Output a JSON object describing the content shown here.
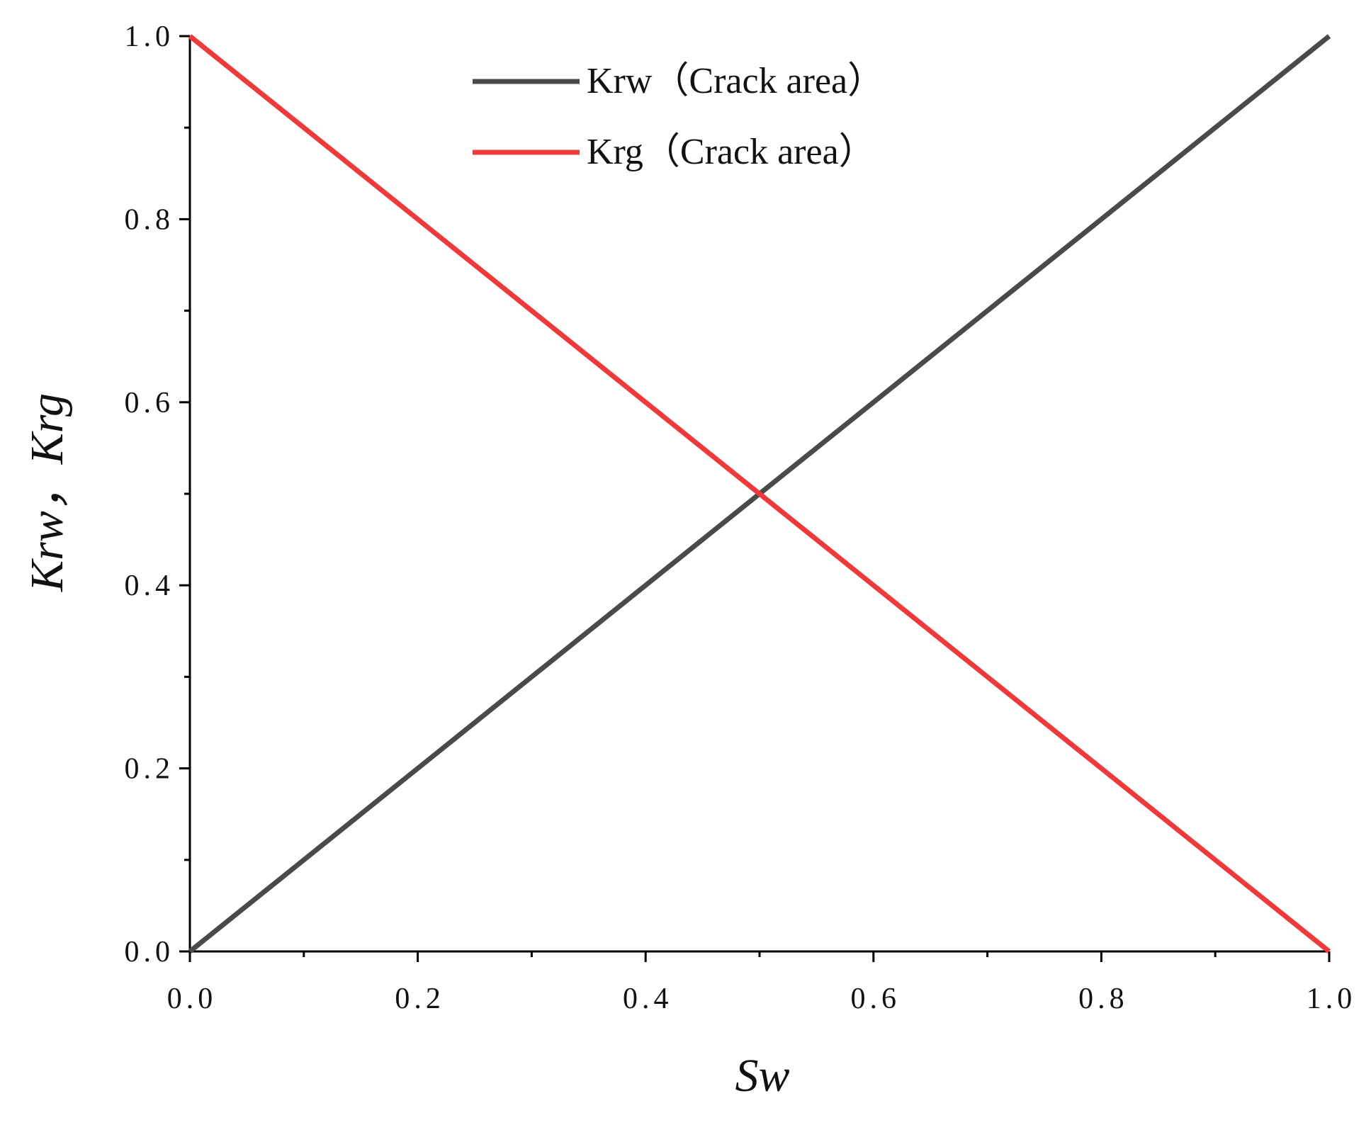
{
  "chart_data": {
    "type": "line",
    "xlabel": "Sw",
    "ylabel": "Krw，Krg",
    "x": [
      0,
      1
    ],
    "series": [
      {
        "name": "Krw（Crack area）",
        "color": "#4a4a4a",
        "values": [
          0,
          1
        ]
      },
      {
        "name": "Krg（Crack area）",
        "color": "#ee3a3a",
        "values": [
          1,
          0
        ]
      }
    ],
    "xlim": [
      0,
      1
    ],
    "ylim": [
      0,
      1
    ],
    "xticks": [
      {
        "value": 0,
        "label": "0.0"
      },
      0.2,
      0.4,
      0.6,
      0.8,
      {
        "value": 1,
        "label": "1.0"
      }
    ],
    "yticks": [
      {
        "value": 0,
        "label": "0.0"
      },
      0.2,
      0.4,
      0.6,
      0.8,
      {
        "value": 1,
        "label": "1.0"
      }
    ],
    "legend": "upper center",
    "grid": false
  }
}
